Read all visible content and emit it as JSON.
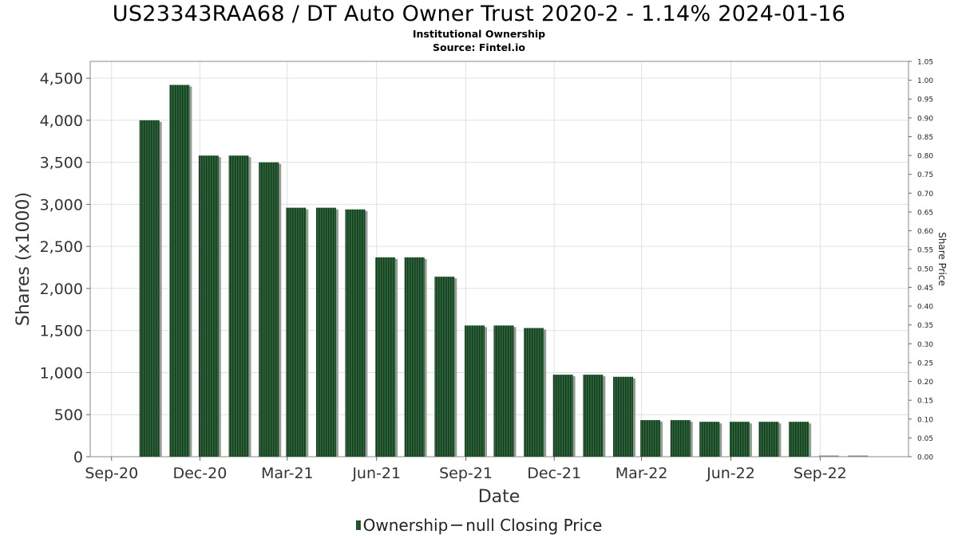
{
  "chart_data": {
    "type": "bar",
    "title": "US23343RAA68 / DT Auto Owner Trust 2020-2 - 1.14% 2024-01-16",
    "subtitle_lines": [
      "Institutional Ownership",
      "Source: Fintel.io"
    ],
    "xlabel": "Date",
    "ylabel": "Shares (x1000)",
    "y2label": "Share Price",
    "x_ticks": [
      "Sep-20",
      "Dec-20",
      "Mar-21",
      "Jun-21",
      "Sep-21",
      "Dec-21",
      "Mar-22",
      "Jun-22",
      "Sep-22"
    ],
    "y_ticks": [
      "0",
      "500",
      "1,000",
      "1,500",
      "2,000",
      "2,500",
      "3,000",
      "3,500",
      "4,000",
      "4,500"
    ],
    "y2_ticks": [
      "0.00",
      "0.05",
      "0.10",
      "0.15",
      "0.20",
      "0.25",
      "0.30",
      "0.35",
      "0.40",
      "0.45",
      "0.50",
      "0.55",
      "0.60",
      "0.65",
      "0.70",
      "0.75",
      "0.80",
      "0.85",
      "0.90",
      "0.95",
      "1.00",
      "1.05"
    ],
    "ylim": [
      0,
      4700
    ],
    "y2lim": [
      0,
      1.05
    ],
    "grid": true,
    "legend_position": "bottom",
    "legend": [
      "Ownership",
      "null Closing Price"
    ],
    "series": [
      {
        "name": "Ownership",
        "color": "#1f4a2a",
        "points": [
          {
            "x": "2020-10-10",
            "y": 4000
          },
          {
            "x": "2020-11-10",
            "y": 4420
          },
          {
            "x": "2020-12-10",
            "y": 3580
          },
          {
            "x": "2021-01-10",
            "y": 3580
          },
          {
            "x": "2021-02-10",
            "y": 3500
          },
          {
            "x": "2021-03-10",
            "y": 2960
          },
          {
            "x": "2021-04-10",
            "y": 2960
          },
          {
            "x": "2021-05-10",
            "y": 2940
          },
          {
            "x": "2021-06-10",
            "y": 2370
          },
          {
            "x": "2021-07-10",
            "y": 2370
          },
          {
            "x": "2021-08-10",
            "y": 2140
          },
          {
            "x": "2021-09-10",
            "y": 1560
          },
          {
            "x": "2021-10-10",
            "y": 1560
          },
          {
            "x": "2021-11-10",
            "y": 1530
          },
          {
            "x": "2021-12-10",
            "y": 975
          },
          {
            "x": "2022-01-10",
            "y": 975
          },
          {
            "x": "2022-02-10",
            "y": 950
          },
          {
            "x": "2022-03-10",
            "y": 435
          },
          {
            "x": "2022-04-10",
            "y": 435
          },
          {
            "x": "2022-05-10",
            "y": 415
          },
          {
            "x": "2022-06-10",
            "y": 415
          },
          {
            "x": "2022-07-10",
            "y": 415
          },
          {
            "x": "2022-08-10",
            "y": 415
          },
          {
            "x": "2022-09-10",
            "y": 0
          },
          {
            "x": "2022-10-10",
            "y": 0
          }
        ]
      }
    ]
  }
}
